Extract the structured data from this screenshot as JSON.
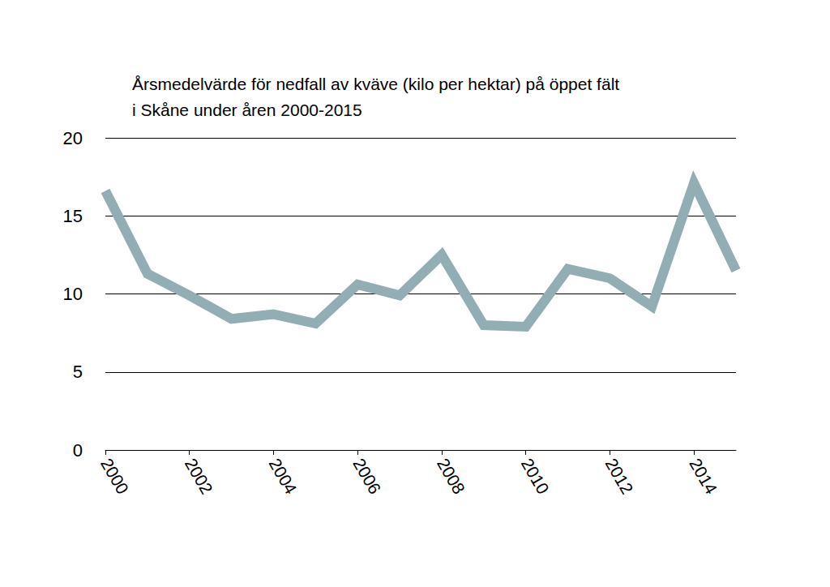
{
  "chart_data": {
    "type": "line",
    "title": "Årsmedelvärde för nedfall av kväve (kilo per hektar) på öppet fält\ni Skåne under åren 2000-2015",
    "x": [
      2000,
      2001,
      2002,
      2003,
      2004,
      2005,
      2006,
      2007,
      2008,
      2009,
      2010,
      2011,
      2012,
      2013,
      2014,
      2015
    ],
    "values": [
      16.6,
      11.3,
      9.9,
      8.4,
      8.7,
      8.1,
      10.6,
      9.9,
      12.5,
      8.0,
      7.9,
      11.6,
      11.0,
      9.2,
      17.1,
      11.5
    ],
    "color": "#93adb5",
    "xlim": [
      2000,
      2015
    ],
    "xticks": [
      2000,
      2002,
      2004,
      2006,
      2008,
      2010,
      2012,
      2014
    ],
    "ylim": [
      0,
      20
    ],
    "yticks": [
      0,
      5,
      10,
      15,
      20
    ],
    "grid": true
  }
}
